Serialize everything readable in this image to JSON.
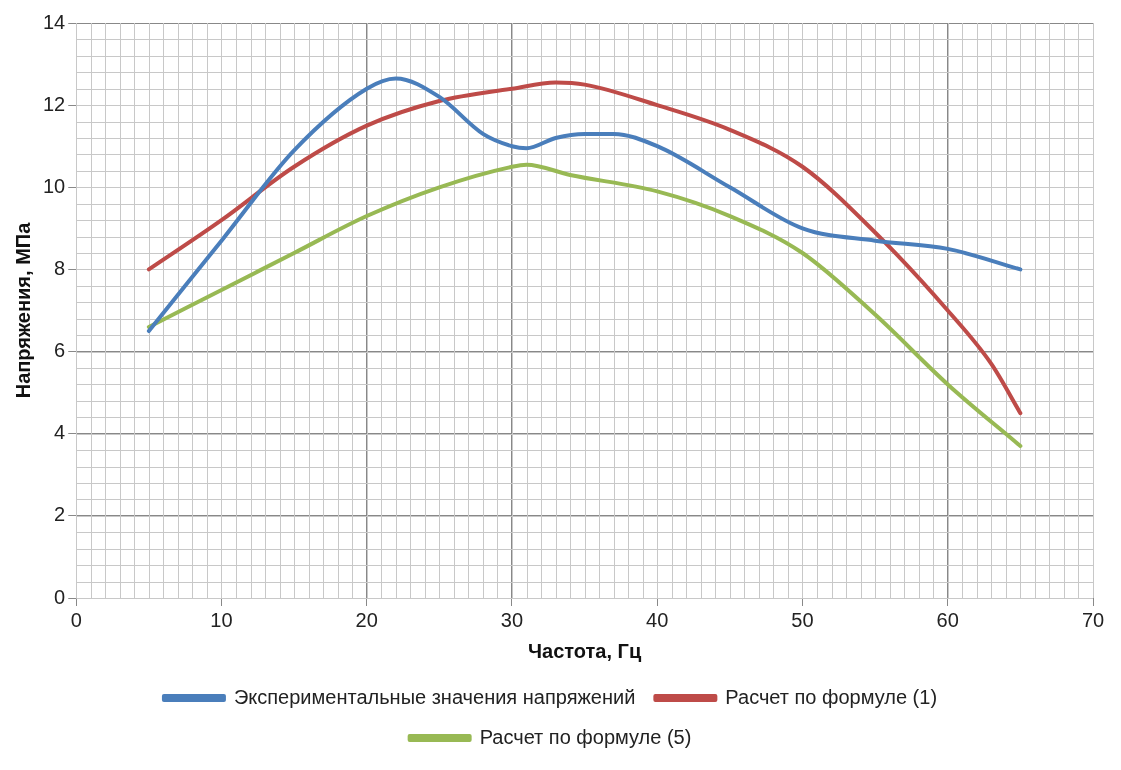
{
  "chart_data": {
    "type": "line",
    "xlabel": "Частота, Гц",
    "ylabel": "Напряжения, МПа",
    "xlim": [
      0,
      70
    ],
    "xticks": [
      0,
      10,
      20,
      30,
      40,
      50,
      60,
      70
    ],
    "ylim": [
      0,
      14
    ],
    "yticks": [
      0,
      2,
      4,
      6,
      8,
      10,
      12,
      14
    ],
    "grid": true,
    "legend": "bottom",
    "marker": "none",
    "line_style": "solid",
    "series": [
      {
        "name": "Экспериментальные значения напряжений",
        "color": "#4a7ebb",
        "x": [
          5,
          10,
          15,
          20,
          22,
          25,
          28,
          30,
          31,
          33,
          35,
          37,
          40,
          45,
          50,
          55,
          60,
          65
        ],
        "values": [
          6.5,
          8.7,
          10.9,
          12.4,
          12.65,
          12.2,
          11.3,
          11.0,
          10.95,
          11.2,
          11.3,
          11.3,
          11.0,
          10.0,
          9.0,
          8.7,
          8.5,
          8.0
        ]
      },
      {
        "name": "Расчет по формуле (1)",
        "color": "#be4b48",
        "x": [
          5,
          10,
          15,
          20,
          25,
          30,
          33,
          35,
          40,
          45,
          50,
          55,
          60,
          63,
          65
        ],
        "values": [
          8,
          9.2,
          10.5,
          11.5,
          12.1,
          12.4,
          12.55,
          12.5,
          12.0,
          11.4,
          10.5,
          8.9,
          7.0,
          5.7,
          4.5
        ]
      },
      {
        "name": "Расчет по формуле (5)",
        "color": "#98b954",
        "x": [
          5,
          10,
          15,
          20,
          25,
          30,
          31,
          34,
          40,
          45,
          50,
          55,
          60,
          65
        ],
        "values": [
          6.6,
          7.5,
          8.4,
          9.3,
          10.0,
          10.5,
          10.55,
          10.3,
          9.9,
          9.3,
          8.4,
          6.9,
          5.2,
          3.7
        ]
      }
    ]
  }
}
